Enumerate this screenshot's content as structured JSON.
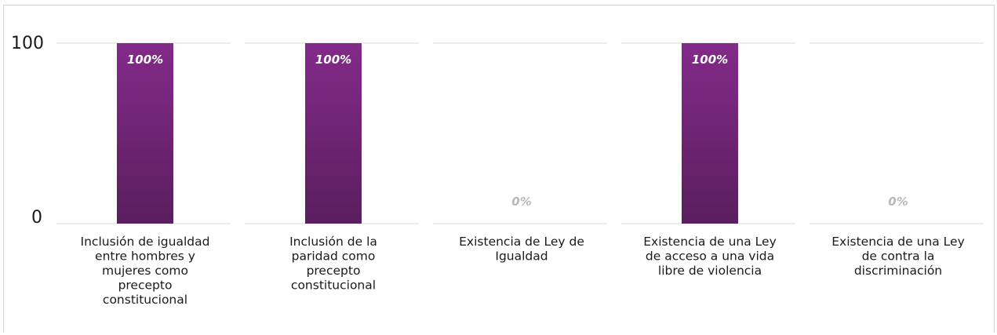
{
  "chart_data": {
    "type": "bar",
    "categories": [
      "Inclusión de igualdad entre hombres y mujeres como precepto constitucional",
      "Inclusión de la paridad como precepto constitucional",
      "Existencia de Ley de Igualdad",
      "Existencia de una Ley de acceso a una vida libre de violencia",
      "Existencia de una Ley de contra la discriminación"
    ],
    "category_lines": [
      [
        "Inclusión de igualdad",
        "entre hombres y",
        "mujeres como",
        "precepto",
        "constitucional"
      ],
      [
        "Inclusión de la",
        "paridad como",
        "precepto",
        "constitucional"
      ],
      [
        "Existencia de Ley de",
        "Igualdad"
      ],
      [
        "Existencia de una Ley",
        "de acceso a una vida",
        "libre de violencia"
      ],
      [
        "Existencia de una Ley",
        "de contra la",
        "discriminación"
      ]
    ],
    "values": [
      100,
      100,
      0,
      100,
      0
    ],
    "data_labels": [
      "100%",
      "100%",
      "0%",
      "100%",
      "0%"
    ],
    "y_ticks": [
      "0",
      "100"
    ],
    "ylim": [
      0,
      100
    ],
    "grid": true,
    "colors": {
      "bar_top": "#832a8a",
      "bar_bottom": "#5a1e5e",
      "label_on_bar": "#ffffff",
      "label_zero": "#b8b8b8",
      "grid": "#d9d9d9"
    }
  }
}
